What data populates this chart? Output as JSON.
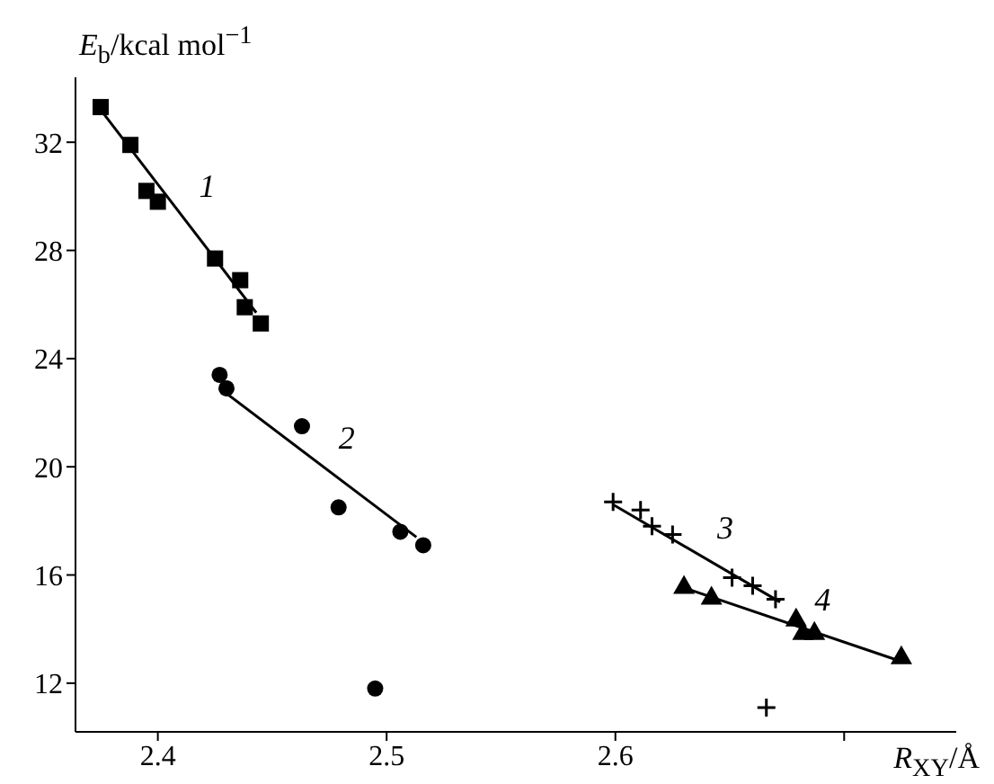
{
  "chart_data": {
    "type": "scatter",
    "xlabel": "R$_{XY}$/Å",
    "ylabel": "E$_{b}$/kcal mol$^{−1}$",
    "xlim": [
      2.364,
      2.749
    ],
    "ylim": [
      10.2,
      34.4
    ],
    "xticks": [
      2.4,
      2.5,
      2.6,
      {
        "value": 2.7,
        "label": null
      }
    ],
    "yticks": [
      12,
      16,
      20,
      24,
      28,
      32
    ],
    "grid": false,
    "legend": false,
    "series": [
      {
        "marker": "square",
        "color": "#000000",
        "x": [
          2.375,
          2.388,
          2.395,
          2.4,
          2.425,
          2.436,
          2.438,
          2.445
        ],
        "values": [
          33.3,
          31.9,
          30.2,
          29.8,
          27.7,
          26.9,
          25.9,
          25.3
        ]
      },
      {
        "marker": "circle",
        "color": "#000000",
        "x": [
          2.427,
          2.43,
          2.463,
          2.479,
          2.495,
          2.506,
          2.516
        ],
        "values": [
          23.4,
          22.9,
          21.5,
          18.5,
          11.8,
          17.6,
          17.1
        ]
      },
      {
        "marker": "cross",
        "color": "#000000",
        "x": [
          2.599,
          2.611,
          2.616,
          2.625,
          2.651,
          2.66,
          2.666,
          2.67
        ],
        "values": [
          18.7,
          18.4,
          17.8,
          17.5,
          15.9,
          15.6,
          11.1,
          15.1
        ]
      },
      {
        "marker": "triangle",
        "color": "#000000",
        "x": [
          2.63,
          2.642,
          2.679,
          2.682,
          2.687,
          2.725
        ],
        "values": [
          15.6,
          15.2,
          14.4,
          13.9,
          13.9,
          13.0
        ]
      },
      {
        "type": "line",
        "marker": "none",
        "color": "#000000",
        "x": [
          2.375,
          2.443
        ],
        "values": [
          33.2,
          25.7
        ]
      },
      {
        "type": "line",
        "marker": "none",
        "color": "#000000",
        "x": [
          2.427,
          2.513
        ],
        "values": [
          22.9,
          17.4
        ]
      },
      {
        "type": "line",
        "marker": "none",
        "color": "#000000",
        "x": [
          2.599,
          2.672
        ],
        "values": [
          18.6,
          15.0
        ]
      },
      {
        "type": "line",
        "marker": "none",
        "color": "#000000",
        "x": [
          2.631,
          2.725
        ],
        "values": [
          15.5,
          12.8
        ]
      }
    ],
    "annotations": [
      "1",
      "2",
      "3",
      "4"
    ]
  }
}
